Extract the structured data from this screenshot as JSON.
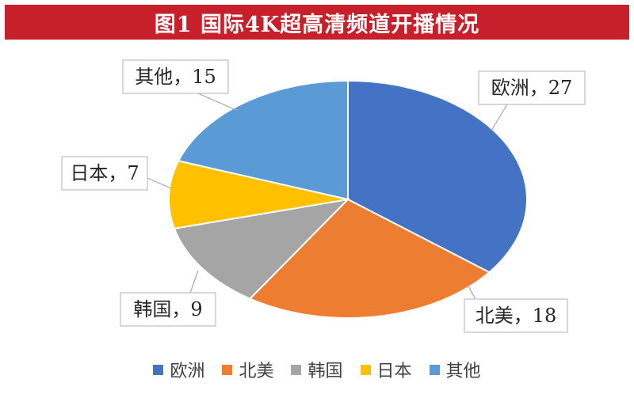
{
  "title": "图1  国际4K超高清频道开播情况",
  "chart_data": {
    "type": "pie",
    "slices": [
      {
        "name": "欧洲",
        "value": 27,
        "label": "欧洲，27",
        "color": "#4472c4"
      },
      {
        "name": "北美",
        "value": 18,
        "label": "北美，18",
        "color": "#ed7d31"
      },
      {
        "name": "韩国",
        "value": 9,
        "label": "韩国，9",
        "color": "#a5a5a5"
      },
      {
        "name": "日本",
        "value": 7,
        "label": "日本，7",
        "color": "#ffc000"
      },
      {
        "name": "其他",
        "value": 15,
        "label": "其他，15",
        "color": "#5b9bd5"
      }
    ],
    "legend": [
      "欧洲",
      "北美",
      "韩国",
      "日本",
      "其他"
    ],
    "legend_position": "bottom"
  }
}
